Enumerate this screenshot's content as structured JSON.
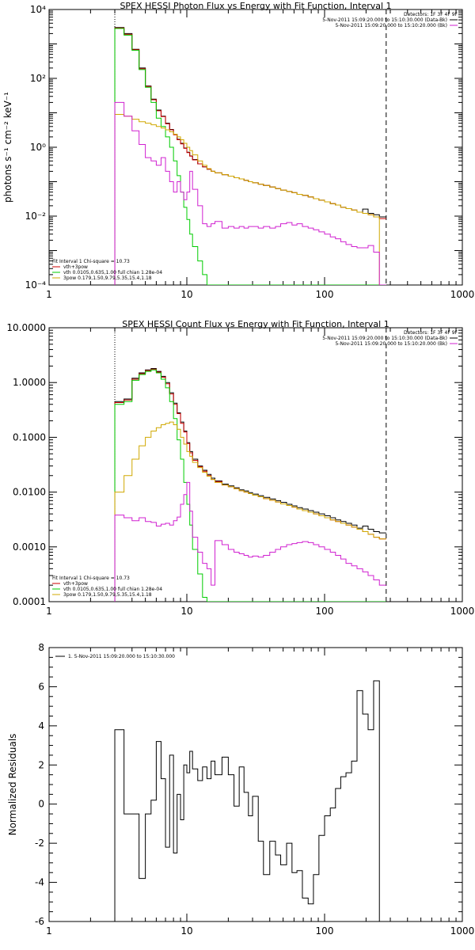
{
  "chart_data": [
    {
      "type": "line",
      "title": "SPEX HESSI Photon Flux vs Energy with Fit Function, Interval 1",
      "ylabel": "photons s⁻¹ cm⁻² keV⁻¹",
      "xlabel": "",
      "xscale": "log",
      "yscale": "log",
      "xlim": [
        1,
        1000
      ],
      "ylim": [
        0.0001,
        10000
      ],
      "x_ticks": [
        "1",
        "10",
        "100",
        "1000"
      ],
      "y_ticks": [
        "10⁻⁴",
        "10⁻²",
        "10⁰",
        "10²",
        "10⁴"
      ],
      "legend_top": {
        "header": "Detectors: 1F 3F 4F 9F",
        "items": [
          {
            "label": "5-Nov-2011 15:09:20.000 to 15:10:30.000 (Data-Bk)",
            "color": "#000000"
          },
          {
            "label": "5-Nov-2011 15:09:20.000 to 15:10:20.000 (Bk)",
            "color": "#d020d0"
          }
        ]
      },
      "legend_bottom": {
        "header": "Fit Interval 1    Chi-square = 10.73",
        "items": [
          {
            "label": "vth+3pow",
            "color": "#cc0000"
          },
          {
            "label": "vth 0.0105,0.635,1.00  full chian 1.28e-04",
            "color": "#00cc00"
          },
          {
            "label": "3pow 0.179,1.50,9.79,5.35,15.4,1.18",
            "color": "#d0a800"
          }
        ]
      },
      "vlines": [
        {
          "x": 3.0,
          "style": "dotted",
          "color": "#000000"
        },
        {
          "x": 280,
          "style": "dashed",
          "color": "#000000"
        }
      ],
      "edges": [
        3.0,
        3.5,
        4.0,
        4.5,
        5.0,
        5.5,
        6.0,
        6.5,
        7.0,
        7.5,
        8.0,
        8.5,
        9.0,
        9.5,
        10.0,
        10.5,
        11.0,
        12.0,
        13.0,
        14.0,
        15.0,
        16.0,
        18.0,
        20.0,
        22.0,
        24.0,
        26.0,
        28.0,
        30.0,
        33.0,
        36.0,
        40.0,
        44.0,
        48.0,
        53.0,
        58.0,
        63.0,
        69.0,
        76.0,
        83.0,
        91.0,
        100.0,
        110.0,
        120.0,
        131.0,
        143.0,
        157.0,
        172.0,
        189.0,
        207.0,
        227.0,
        250.0,
        280.0
      ],
      "series": [
        {
          "name": "Data-Bk",
          "color": "#000000",
          "values": [
            3000,
            2000,
            700,
            200,
            60,
            25,
            12,
            8,
            5,
            3.3,
            2.4,
            1.7,
            1.3,
            0.95,
            0.72,
            0.56,
            0.44,
            0.33,
            0.27,
            0.23,
            0.2,
            0.18,
            0.16,
            0.145,
            0.13,
            0.12,
            0.11,
            0.1,
            0.093,
            0.085,
            0.078,
            0.07,
            0.063,
            0.057,
            0.052,
            0.048,
            0.043,
            0.04,
            0.036,
            0.032,
            0.029,
            0.026,
            0.023,
            0.021,
            0.018,
            0.0165,
            0.015,
            0.013,
            0.016,
            0.012,
            0.011,
            0.0095
          ]
        },
        {
          "name": "vth+3pow",
          "color": "#cc0000",
          "values": [
            2900,
            1900,
            680,
            190,
            58,
            24,
            11.5,
            7.8,
            4.8,
            3.2,
            2.3,
            1.65,
            1.25,
            0.93,
            0.7,
            0.55,
            0.43,
            0.33,
            0.27,
            0.23,
            0.2,
            0.18,
            0.16,
            0.145,
            0.13,
            0.12,
            0.11,
            0.1,
            0.093,
            0.085,
            0.078,
            0.07,
            0.063,
            0.057,
            0.052,
            0.048,
            0.043,
            0.04,
            0.036,
            0.032,
            0.029,
            0.026,
            0.023,
            0.021,
            0.018,
            0.0165,
            0.015,
            0.013,
            0.012,
            0.011,
            0.0095,
            0.0085
          ]
        },
        {
          "name": "vth",
          "color": "#00cc00",
          "values": [
            2800,
            1800,
            650,
            180,
            55,
            20,
            7,
            4,
            2,
            1.0,
            0.4,
            0.15,
            0.05,
            0.018,
            0.008,
            0.003,
            0.0013,
            0.0005,
            0.0002,
            0.0001,
            0.0001,
            0.0001,
            0.0001,
            0.0001,
            0.0001,
            0.0001,
            0.0001,
            0.0001,
            0.0001,
            0.0001,
            0.0001,
            0.0001,
            0.0001,
            0.0001,
            0.0001,
            0.0001,
            0.0001,
            0.0001,
            0.0001,
            0.0001,
            0.0001,
            0.0001,
            0.0001,
            0.0001,
            0.0001,
            0.0001,
            0.0001,
            0.0001,
            0.0001,
            0.0001,
            0.0001,
            0.0001
          ]
        },
        {
          "name": "3pow",
          "color": "#d0a800",
          "values": [
            9,
            8,
            6.5,
            5.5,
            5,
            4.5,
            4,
            3.6,
            3.2,
            2.8,
            2.4,
            2.0,
            1.65,
            1.3,
            1.0,
            0.8,
            0.6,
            0.4,
            0.3,
            0.24,
            0.2,
            0.18,
            0.16,
            0.145,
            0.13,
            0.12,
            0.11,
            0.1,
            0.093,
            0.085,
            0.078,
            0.07,
            0.063,
            0.057,
            0.052,
            0.048,
            0.043,
            0.04,
            0.036,
            0.032,
            0.029,
            0.026,
            0.023,
            0.021,
            0.018,
            0.0165,
            0.015,
            0.013,
            0.012,
            0.011,
            0.0095,
            0.0001
          ]
        },
        {
          "name": "Bk",
          "color": "#d020d0",
          "values": [
            20,
            8,
            3,
            1.2,
            0.5,
            0.4,
            0.3,
            0.5,
            0.2,
            0.1,
            0.05,
            0.1,
            0.05,
            0.03,
            0.05,
            0.2,
            0.06,
            0.02,
            0.006,
            0.005,
            0.006,
            0.007,
            0.0045,
            0.005,
            0.0045,
            0.005,
            0.0045,
            0.005,
            0.005,
            0.0045,
            0.005,
            0.0045,
            0.005,
            0.006,
            0.0065,
            0.0055,
            0.006,
            0.005,
            0.0045,
            0.004,
            0.0035,
            0.003,
            0.0025,
            0.0022,
            0.0018,
            0.0015,
            0.0013,
            0.0012,
            0.0012,
            0.0014,
            0.0009,
            0.0001
          ]
        }
      ]
    },
    {
      "type": "line",
      "title": "SPEX HESSI Count Flux vs Energy with Fit Function, Interval 1",
      "ylabel": "",
      "xlabel": "",
      "xscale": "log",
      "yscale": "log",
      "xlim": [
        1,
        1000
      ],
      "ylim": [
        0.0001,
        10
      ],
      "x_ticks": [
        "1",
        "10",
        "100",
        "1000"
      ],
      "y_ticks": [
        "0.0001",
        "0.0010",
        "0.0100",
        "0.1000",
        "1.0000",
        "10.0000"
      ],
      "legend_top": {
        "header": "Detectors: 1F 3F 4F 9F",
        "items": [
          {
            "label": "5-Nov-2011 15:09:20.000 to 15:10:30.000 (Data-Bk)",
            "color": "#000000"
          },
          {
            "label": "5-Nov-2011 15:09:20.000 to 15:10:20.000 (Bk)",
            "color": "#d020d0"
          }
        ]
      },
      "legend_bottom": {
        "header": "Fit Interval 1    Chi-square = 10.73",
        "items": [
          {
            "label": "vth+3pow",
            "color": "#cc0000"
          },
          {
            "label": "vth 0.0105,0.635,1.00  full chian 1.28e-04",
            "color": "#00cc00"
          },
          {
            "label": "3pow 0.179,1.50,9.79,5.35,15.4,1.18",
            "color": "#d0a800"
          }
        ]
      },
      "vlines": [
        {
          "x": 3.0,
          "style": "dotted",
          "color": "#000000"
        },
        {
          "x": 280,
          "style": "dashed",
          "color": "#000000"
        }
      ],
      "edges": [
        3.0,
        3.5,
        4.0,
        4.5,
        5.0,
        5.5,
        6.0,
        6.5,
        7.0,
        7.5,
        8.0,
        8.5,
        9.0,
        9.5,
        10.0,
        10.5,
        11.0,
        12.0,
        13.0,
        14.0,
        15.0,
        16.0,
        18.0,
        20.0,
        22.0,
        24.0,
        26.0,
        28.0,
        30.0,
        33.0,
        36.0,
        40.0,
        44.0,
        48.0,
        53.0,
        58.0,
        63.0,
        69.0,
        76.0,
        83.0,
        91.0,
        100.0,
        110.0,
        120.0,
        131.0,
        143.0,
        157.0,
        172.0,
        189.0,
        207.0,
        227.0,
        250.0,
        280.0
      ],
      "series": [
        {
          "name": "Data-Bk",
          "color": "#000000",
          "values": [
            0.45,
            0.5,
            1.2,
            1.5,
            1.7,
            1.8,
            1.6,
            1.3,
            1.0,
            0.65,
            0.42,
            0.28,
            0.19,
            0.13,
            0.08,
            0.055,
            0.04,
            0.03,
            0.025,
            0.021,
            0.018,
            0.016,
            0.014,
            0.013,
            0.012,
            0.011,
            0.0105,
            0.0098,
            0.0092,
            0.0086,
            0.008,
            0.0075,
            0.007,
            0.0065,
            0.006,
            0.0056,
            0.0052,
            0.0049,
            0.0046,
            0.0043,
            0.004,
            0.0037,
            0.0034,
            0.0031,
            0.0029,
            0.0027,
            0.0025,
            0.0022,
            0.0024,
            0.0021,
            0.0019,
            0.0018
          ]
        },
        {
          "name": "vth+3pow",
          "color": "#cc0000",
          "values": [
            0.43,
            0.48,
            1.15,
            1.45,
            1.65,
            1.75,
            1.55,
            1.25,
            0.95,
            0.62,
            0.4,
            0.27,
            0.18,
            0.125,
            0.077,
            0.052,
            0.038,
            0.029,
            0.024,
            0.02,
            0.017,
            0.0155,
            0.0135,
            0.0125,
            0.0115,
            0.0106,
            0.01,
            0.0094,
            0.0088,
            0.0082,
            0.0076,
            0.0071,
            0.0066,
            0.0061,
            0.0057,
            0.0053,
            0.0049,
            0.0046,
            0.0043,
            0.004,
            0.0037,
            0.0034,
            0.0031,
            0.0029,
            0.0027,
            0.0025,
            0.0023,
            0.0021,
            0.0019,
            0.0017,
            0.0015,
            0.0014
          ]
        },
        {
          "name": "vth",
          "color": "#00cc00",
          "values": [
            0.4,
            0.45,
            1.1,
            1.4,
            1.6,
            1.7,
            1.5,
            1.15,
            0.8,
            0.45,
            0.22,
            0.09,
            0.04,
            0.015,
            0.006,
            0.0025,
            0.0009,
            0.00032,
            0.00012,
            0.0001,
            0.0001,
            0.0001,
            0.0001,
            0.0001,
            0.0001,
            0.0001,
            0.0001,
            0.0001,
            0.0001,
            0.0001,
            0.0001,
            0.0001,
            0.0001,
            0.0001,
            0.0001,
            0.0001,
            0.0001,
            0.0001,
            0.0001,
            0.0001,
            0.0001,
            0.0001,
            0.0001,
            0.0001,
            0.0001,
            0.0001,
            0.0001,
            0.0001,
            0.0001,
            0.0001,
            0.0001,
            0.0001
          ]
        },
        {
          "name": "3pow",
          "color": "#d0a800",
          "values": [
            0.01,
            0.02,
            0.04,
            0.07,
            0.1,
            0.13,
            0.15,
            0.17,
            0.18,
            0.19,
            0.17,
            0.14,
            0.1,
            0.075,
            0.055,
            0.045,
            0.035,
            0.028,
            0.023,
            0.0195,
            0.017,
            0.015,
            0.0135,
            0.0125,
            0.0115,
            0.0106,
            0.01,
            0.0094,
            0.0088,
            0.0082,
            0.0076,
            0.0071,
            0.0066,
            0.0061,
            0.0057,
            0.0053,
            0.0049,
            0.0046,
            0.0043,
            0.004,
            0.0037,
            0.0034,
            0.0031,
            0.0029,
            0.0027,
            0.0025,
            0.0023,
            0.0021,
            0.0019,
            0.0017,
            0.0015,
            0.0014
          ]
        },
        {
          "name": "Bk",
          "color": "#d020d0",
          "values": [
            0.0038,
            0.0034,
            0.003,
            0.0034,
            0.0029,
            0.0028,
            0.0024,
            0.0026,
            0.0027,
            0.0025,
            0.003,
            0.0035,
            0.006,
            0.009,
            0.015,
            0.0045,
            0.0015,
            0.0008,
            0.0005,
            0.0004,
            0.0002,
            0.0013,
            0.0011,
            0.0009,
            0.0008,
            0.00075,
            0.0007,
            0.00065,
            0.00068,
            0.00065,
            0.0007,
            0.0008,
            0.0009,
            0.001,
            0.0011,
            0.00115,
            0.0012,
            0.00125,
            0.0012,
            0.0011,
            0.001,
            0.0009,
            0.0008,
            0.0007,
            0.0006,
            0.0005,
            0.00045,
            0.0004,
            0.00035,
            0.0003,
            0.00025,
            0.0002
          ]
        }
      ]
    },
    {
      "type": "line",
      "title": "",
      "ylabel": "Normalized Residuals",
      "xlabel": "",
      "xscale": "log",
      "yscale": "linear",
      "xlim": [
        1,
        1000
      ],
      "ylim": [
        -6,
        8
      ],
      "x_ticks": [
        "1",
        "10",
        "100",
        "1000"
      ],
      "y_ticks": [
        "-6",
        "-4",
        "-2",
        "0",
        "2",
        "4",
        "6",
        "8"
      ],
      "legend_top": {
        "header": "",
        "items": [
          {
            "label": "1.  5-Nov-2011 15:09:20.000 to 15:10:30.000",
            "color": "#000000"
          }
        ]
      },
      "legend_bottom": {
        "header": "",
        "items": []
      },
      "vlines": [],
      "edges": [
        3.0,
        3.5,
        4.0,
        4.5,
        5.0,
        5.5,
        6.0,
        6.5,
        7.0,
        7.5,
        8.0,
        8.5,
        9.0,
        9.5,
        10.0,
        10.5,
        11.0,
        12.0,
        13.0,
        14.0,
        15.0,
        16.0,
        18.0,
        20.0,
        22.0,
        24.0,
        26.0,
        28.0,
        30.0,
        33.0,
        36.0,
        40.0,
        44.0,
        48.0,
        53.0,
        58.0,
        63.0,
        69.0,
        76.0,
        83.0,
        91.0,
        100.0,
        110.0,
        120.0,
        131.0,
        143.0,
        157.0,
        172.0,
        189.0,
        207.0,
        227.0,
        250.0,
        280.0
      ],
      "series": [
        {
          "name": "residuals",
          "color": "#000000",
          "values": [
            3.8,
            -0.5,
            -0.5,
            -3.8,
            -0.5,
            0.2,
            3.2,
            1.3,
            -2.2,
            2.5,
            -2.5,
            0.5,
            -0.8,
            2.0,
            1.6,
            2.7,
            1.8,
            1.2,
            1.9,
            1.3,
            2.2,
            1.5,
            2.4,
            1.5,
            -0.1,
            1.9,
            0.6,
            -0.6,
            0.4,
            -1.9,
            -3.6,
            -1.9,
            -2.6,
            -3.1,
            -2.0,
            -3.5,
            -3.4,
            -4.8,
            -5.1,
            -3.6,
            -1.6,
            -0.6,
            -0.2,
            0.8,
            1.4,
            1.6,
            2.2,
            5.8,
            4.6,
            3.8,
            6.3,
            -6.0
          ]
        }
      ]
    }
  ]
}
